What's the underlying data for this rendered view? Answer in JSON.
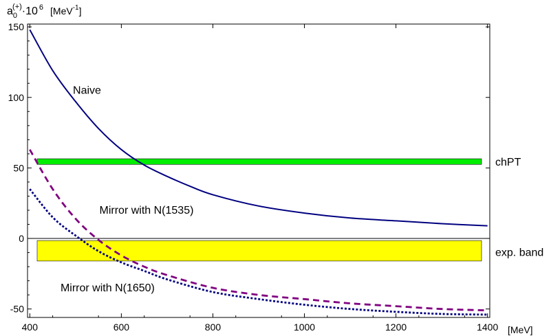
{
  "chart_data": {
    "type": "line",
    "y_axis_label": {
      "symbol": "a",
      "subscript": "0",
      "superscript": "(+)",
      "factor": "·10",
      "exponent": "6",
      "unit_prefix": "[MeV",
      "unit_exponent": "-1",
      "unit_suffix": "]"
    },
    "x_unit_label": "[MeV]",
    "xlim": [
      395,
      1405
    ],
    "ylim": [
      -56,
      152
    ],
    "x_ticks": [
      400,
      600,
      800,
      1000,
      1200,
      1400
    ],
    "y_ticks": [
      -50,
      0,
      50,
      100,
      150
    ],
    "bands": [
      {
        "name": "chPT",
        "y_low": 52.5,
        "y_high": 56.5,
        "color": "#00ee00"
      },
      {
        "name": "exp. band",
        "y_low": -16,
        "y_high": -1.5,
        "color": "#ffff00"
      }
    ],
    "series": [
      {
        "name": "Naive",
        "style": "solid",
        "color": "#000080",
        "x": [
          400,
          450,
          500,
          550,
          600,
          650,
          700,
          750,
          800,
          900,
          1000,
          1100,
          1200,
          1300,
          1400
        ],
        "y": [
          148,
          119,
          97,
          78,
          63,
          52,
          44,
          37,
          31,
          23,
          18,
          14.5,
          12.5,
          10.5,
          9
        ]
      },
      {
        "name": "Mirror with N(1535)",
        "style": "dashed",
        "color": "#800080",
        "x": [
          400,
          450,
          500,
          550,
          600,
          650,
          700,
          800,
          900,
          1000,
          1100,
          1200,
          1300,
          1400
        ],
        "y": [
          63,
          35,
          14,
          -1,
          -12,
          -20,
          -26,
          -35,
          -40,
          -43,
          -46,
          -48,
          -50,
          -51
        ]
      },
      {
        "name": "Mirror with N(1650)",
        "style": "dotted",
        "color": "#000080",
        "x": [
          400,
          450,
          500,
          550,
          600,
          650,
          700,
          800,
          900,
          1000,
          1100,
          1200,
          1300,
          1400
        ],
        "y": [
          35,
          15,
          2,
          -9,
          -17,
          -23,
          -29,
          -38,
          -43,
          -47,
          -50,
          -52,
          -53.5,
          -54
        ]
      }
    ],
    "annotations": [
      {
        "text": "Naive",
        "x": 525,
        "y": 105
      },
      {
        "text": "Mirror with N(1535)",
        "x": 655,
        "y": 20
      },
      {
        "text": "Mirror with N(1650)",
        "x": 570,
        "y": -35
      },
      {
        "text": "chPT",
        "x": "right",
        "y": 54
      },
      {
        "text": "exp. band",
        "x": "right",
        "y": -10
      }
    ]
  }
}
